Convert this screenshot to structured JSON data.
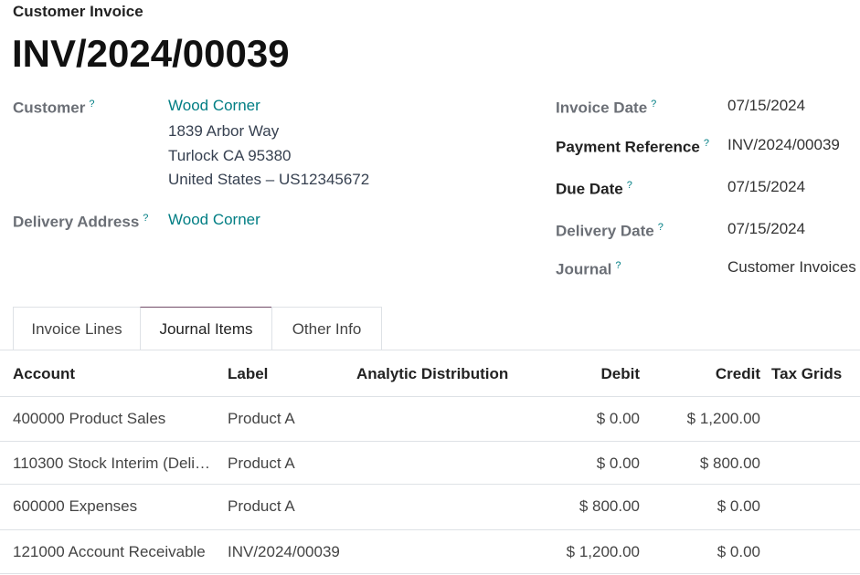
{
  "header": {
    "subtitle": "Customer Invoice",
    "title": "INV/2024/00039"
  },
  "help_mark": "?",
  "left_fields": {
    "customer": {
      "label": "Customer",
      "name": "Wood Corner",
      "address": [
        "1839 Arbor Way",
        "Turlock CA 95380",
        "United States – US12345672"
      ]
    },
    "delivery_address": {
      "label": "Delivery Address",
      "value": "Wood Corner"
    }
  },
  "right_fields": [
    {
      "label": "Invoice Date",
      "value": "07/15/2024"
    },
    {
      "label": "Payment Reference",
      "value": "INV/2024/00039"
    },
    {
      "label": "Due Date",
      "value": "07/15/2024"
    },
    {
      "label": "Delivery Date",
      "value": "07/15/2024"
    },
    {
      "label": "Journal",
      "value": "Customer Invoices"
    }
  ],
  "tabs": [
    "Invoice Lines",
    "Journal Items",
    "Other Info"
  ],
  "table": {
    "columns": [
      "Account",
      "Label",
      "Analytic Distribution",
      "Debit",
      "Credit",
      "Tax Grids"
    ],
    "rows": [
      [
        "400000 Product Sales",
        "Product A",
        "",
        "$ 0.00",
        "$ 1,200.00",
        ""
      ],
      [
        "110300 Stock Interim (Deli…",
        "Product A",
        "",
        "$ 0.00",
        "$ 800.00",
        ""
      ],
      [
        "600000 Expenses",
        "Product A",
        "",
        "$ 800.00",
        "$ 0.00",
        ""
      ],
      [
        "121000 Account Receivable",
        "INV/2024/00039",
        "",
        "$ 1,200.00",
        "$ 0.00",
        ""
      ]
    ]
  }
}
